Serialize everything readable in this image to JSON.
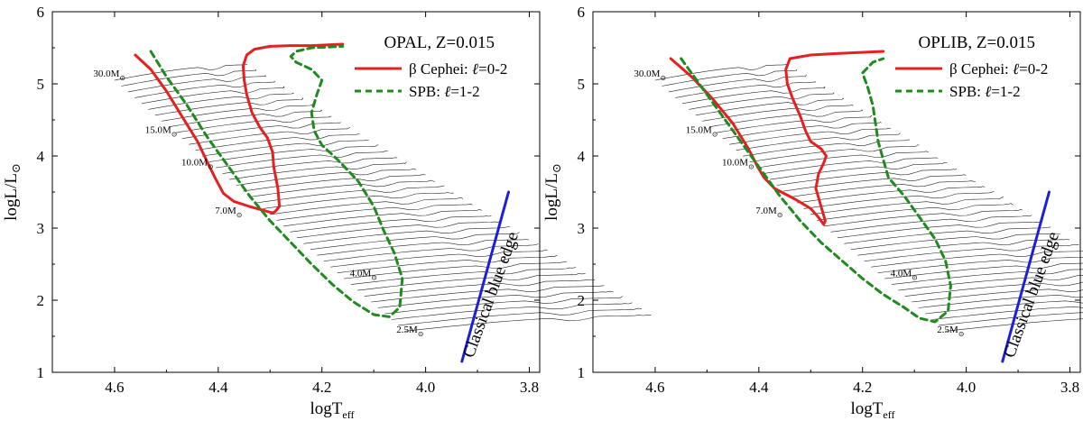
{
  "chart_data": [
    {
      "type": "line",
      "title": "OPAL, Z=0.015",
      "xlabel": "logT",
      "xlabel_sub": "eff",
      "ylabel": "logL/L",
      "ylabel_sym": "⊙",
      "xlim": [
        4.72,
        3.78
      ],
      "ylim": [
        1,
        6
      ],
      "x_ticks": [
        4.6,
        4.4,
        4.2,
        4.0,
        3.8
      ],
      "x_tick_labels": [
        "4.6",
        "4.4",
        "4.2",
        "4.0",
        "3.8"
      ],
      "y_ticks": [
        1,
        2,
        3,
        4,
        5,
        6
      ],
      "y_tick_labels": [
        "1",
        "2",
        "3",
        "4",
        "5",
        "6"
      ],
      "legend": {
        "placement": "top-right",
        "entries": [
          {
            "prefix": "β Cephei: ",
            "ell": "ℓ",
            "suffix": "=0-2",
            "color": "#e62020",
            "style": "solid"
          },
          {
            "prefix": "SPB: ",
            "ell": "ℓ",
            "suffix": "=1-2",
            "color": "#1f8a1f",
            "style": "dashed"
          }
        ]
      },
      "mass_labels": [
        {
          "text": "30.0M",
          "sym": "⊙",
          "x": 4.61,
          "y": 5.1
        },
        {
          "text": "15.0M",
          "sym": "⊙",
          "x": 4.51,
          "y": 4.32
        },
        {
          "text": "10.0M",
          "sym": "⊙",
          "x": 4.44,
          "y": 3.87
        },
        {
          "text": "7.0M",
          "sym": "⊙",
          "x": 4.38,
          "y": 3.2
        },
        {
          "text": "4.0M",
          "sym": "⊙",
          "x": 4.12,
          "y": 2.33
        },
        {
          "text": "2.5M",
          "sym": "⊙",
          "x": 4.03,
          "y": 1.55
        }
      ],
      "series": [
        {
          "name": "β Cephei: ℓ=0-2",
          "color": "#e62020",
          "style": "solid",
          "x": [
            4.56,
            4.53,
            4.5,
            4.47,
            4.44,
            4.42,
            4.405,
            4.39,
            4.37,
            4.34,
            4.31,
            4.295,
            4.29,
            4.282,
            4.285,
            4.293,
            4.295,
            4.305,
            4.32,
            4.335,
            4.345,
            4.35,
            4.352,
            4.345,
            4.33,
            4.3,
            4.26,
            4.22,
            4.16
          ],
          "y": [
            5.4,
            5.2,
            4.9,
            4.55,
            4.2,
            3.9,
            3.68,
            3.48,
            3.37,
            3.3,
            3.24,
            3.21,
            3.23,
            3.3,
            3.55,
            3.85,
            4.05,
            4.25,
            4.4,
            4.6,
            4.85,
            5.05,
            5.25,
            5.4,
            5.48,
            5.52,
            5.53,
            5.53,
            5.55
          ]
        },
        {
          "name": "SPB: ℓ=1-2",
          "color": "#1f8a1f",
          "style": "dashed",
          "x": [
            4.53,
            4.5,
            4.46,
            4.42,
            4.38,
            4.34,
            4.3,
            4.26,
            4.22,
            4.18,
            4.14,
            4.1,
            4.07,
            4.05,
            4.045,
            4.06,
            4.08,
            4.1,
            4.13,
            4.17,
            4.2,
            4.215,
            4.22,
            4.21,
            4.2,
            4.22,
            4.25,
            4.26,
            4.25,
            4.22,
            4.16
          ],
          "y": [
            5.45,
            5.1,
            4.7,
            4.25,
            3.85,
            3.45,
            3.1,
            2.8,
            2.5,
            2.22,
            1.98,
            1.8,
            1.77,
            1.9,
            2.3,
            2.65,
            2.95,
            3.3,
            3.65,
            3.95,
            4.15,
            4.35,
            4.6,
            4.85,
            5.05,
            5.2,
            5.3,
            5.38,
            5.45,
            5.5,
            5.52
          ]
        },
        {
          "name": "Classical blue edge",
          "color": "#1f1fd8",
          "style": "solid",
          "x": [
            3.93,
            3.84
          ],
          "y": [
            1.15,
            3.5
          ]
        }
      ],
      "edge_label": "Classical blue edge"
    },
    {
      "type": "line",
      "title": "OPLIB, Z=0.015",
      "xlabel": "logT",
      "xlabel_sub": "eff",
      "ylabel": "logL/L",
      "ylabel_sym": "⊙",
      "xlim": [
        4.72,
        3.78
      ],
      "ylim": [
        1,
        6
      ],
      "x_ticks": [
        4.6,
        4.4,
        4.2,
        4.0,
        3.8
      ],
      "x_tick_labels": [
        "4.6",
        "4.4",
        "4.2",
        "4.0",
        "3.8"
      ],
      "y_ticks": [
        1,
        2,
        3,
        4,
        5,
        6
      ],
      "y_tick_labels": [
        "1",
        "2",
        "3",
        "4",
        "5",
        "6"
      ],
      "legend": {
        "placement": "top-right",
        "entries": [
          {
            "prefix": "β Cephei: ",
            "ell": "ℓ",
            "suffix": "=0-2",
            "color": "#e62020",
            "style": "solid"
          },
          {
            "prefix": "SPB: ",
            "ell": "ℓ",
            "suffix": "=1-2",
            "color": "#1f8a1f",
            "style": "dashed"
          }
        ]
      },
      "mass_labels": [
        {
          "text": "30.0M",
          "sym": "⊙",
          "x": 4.61,
          "y": 5.1
        },
        {
          "text": "15.0M",
          "sym": "⊙",
          "x": 4.51,
          "y": 4.32
        },
        {
          "text": "10.0M",
          "sym": "⊙",
          "x": 4.44,
          "y": 3.87
        },
        {
          "text": "7.0M",
          "sym": "⊙",
          "x": 4.38,
          "y": 3.2
        },
        {
          "text": "4.0M",
          "sym": "⊙",
          "x": 4.12,
          "y": 2.33
        },
        {
          "text": "2.5M",
          "sym": "⊙",
          "x": 4.03,
          "y": 1.55
        }
      ],
      "series": [
        {
          "name": "β Cephei: ℓ=0-2",
          "color": "#e62020",
          "style": "solid",
          "x": [
            4.57,
            4.53,
            4.49,
            4.45,
            4.42,
            4.4,
            4.39,
            4.37,
            4.33,
            4.3,
            4.285,
            4.275,
            4.272,
            4.28,
            4.29,
            4.285,
            4.275,
            4.27,
            4.28,
            4.3,
            4.31,
            4.32,
            4.335,
            4.345,
            4.348,
            4.34,
            4.3,
            4.25,
            4.16
          ],
          "y": [
            5.35,
            5.1,
            4.8,
            4.45,
            4.1,
            3.82,
            3.7,
            3.55,
            3.4,
            3.27,
            3.15,
            3.05,
            3.1,
            3.3,
            3.55,
            3.75,
            3.9,
            4.0,
            4.1,
            4.2,
            4.35,
            4.55,
            4.8,
            5.0,
            5.2,
            5.35,
            5.4,
            5.42,
            5.45
          ]
        },
        {
          "name": "SPB: ℓ=1-2",
          "color": "#1f8a1f",
          "style": "dashed",
          "x": [
            4.55,
            4.52,
            4.48,
            4.44,
            4.4,
            4.36,
            4.32,
            4.28,
            4.24,
            4.2,
            4.16,
            4.12,
            4.09,
            4.06,
            4.035,
            4.03,
            4.04,
            4.06,
            4.09,
            4.12,
            4.15,
            4.16,
            4.17,
            4.175,
            4.18,
            4.19,
            4.2,
            4.18,
            4.16
          ],
          "y": [
            5.35,
            5.05,
            4.65,
            4.25,
            3.85,
            3.45,
            3.1,
            2.8,
            2.55,
            2.3,
            2.08,
            1.9,
            1.75,
            1.7,
            1.85,
            2.2,
            2.55,
            2.85,
            3.15,
            3.45,
            3.7,
            3.95,
            4.2,
            4.45,
            4.7,
            4.95,
            5.15,
            5.3,
            5.35
          ]
        },
        {
          "name": "Classical blue edge",
          "color": "#1f1fd8",
          "style": "solid",
          "x": [
            3.93,
            3.84
          ],
          "y": [
            1.15,
            3.5
          ]
        }
      ],
      "edge_label": "Classical blue edge"
    }
  ]
}
